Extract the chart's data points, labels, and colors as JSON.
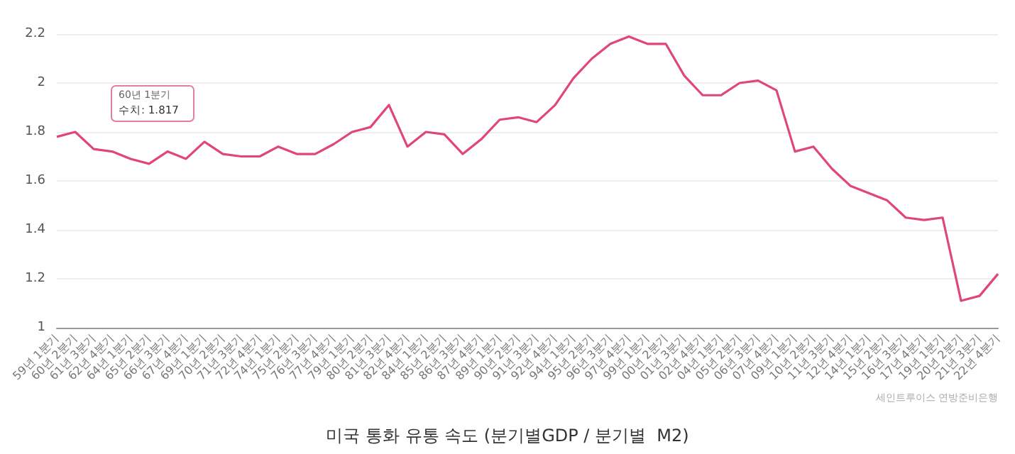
{
  "chart_data": {
    "type": "line",
    "title": "미국 통화 유통 속도 (분기별GDP / 분기별  M2)",
    "categories": [
      "59년 1분기",
      "60년 2분기",
      "61년 3분기",
      "62년 4분기",
      "64년 1분기",
      "65년 2분기",
      "66년 3분기",
      "67년 4분기",
      "69년 1분기",
      "70년 2분기",
      "71년 3분기",
      "72년 4분기",
      "74년 1분기",
      "75년 2분기",
      "76년 3분기",
      "77년 4분기",
      "79년 1분기",
      "80년 2분기",
      "81년 3분기",
      "82년 4분기",
      "84년 1분기",
      "85년 2분기",
      "86년 3분기",
      "87년 4분기",
      "89년 1분기",
      "90년 2분기",
      "91년 3분기",
      "92년 4분기",
      "94년 1분기",
      "95년 2분기",
      "96년 3분기",
      "97년 4분기",
      "99년 1분기",
      "00년 2분기",
      "01년 3분기",
      "02년 4분기",
      "04년 1분기",
      "05년 2분기",
      "06년 3분기",
      "07년 4분기",
      "09년 1분기",
      "10년 2분기",
      "11년 3분기",
      "12년 4분기",
      "14년 1분기",
      "15년 2분기",
      "16년 3분기",
      "17년 4분기",
      "19년 1분기",
      "20년 2분기",
      "21년 3분기",
      "22년 4분기"
    ],
    "series": [
      {
        "color": "#e0457b",
        "values": [
          1.78,
          1.8,
          1.73,
          1.72,
          1.69,
          1.67,
          1.72,
          1.69,
          1.76,
          1.71,
          1.7,
          1.7,
          1.74,
          1.71,
          1.71,
          1.75,
          1.8,
          1.82,
          1.91,
          1.74,
          1.8,
          1.79,
          1.71,
          1.77,
          1.85,
          1.86,
          1.84,
          1.91,
          2.02,
          2.1,
          2.16,
          2.19,
          2.16,
          2.16,
          2.03,
          1.95,
          1.95,
          2.0,
          2.01,
          1.97,
          1.72,
          1.74,
          1.65,
          1.58,
          1.55,
          1.52,
          1.45,
          1.44,
          1.45,
          1.11,
          1.13,
          1.22
        ]
      }
    ],
    "ylim": [
      1,
      2.2
    ],
    "yticks": [
      1,
      1.2,
      1.4,
      1.6,
      1.8,
      2,
      2.2
    ],
    "grid": "y",
    "marker": "none",
    "line_style": "solid",
    "annotations": [
      "60년 1분기",
      "수치: 1.817",
      "세인트루이스 연방준비은행"
    ]
  }
}
